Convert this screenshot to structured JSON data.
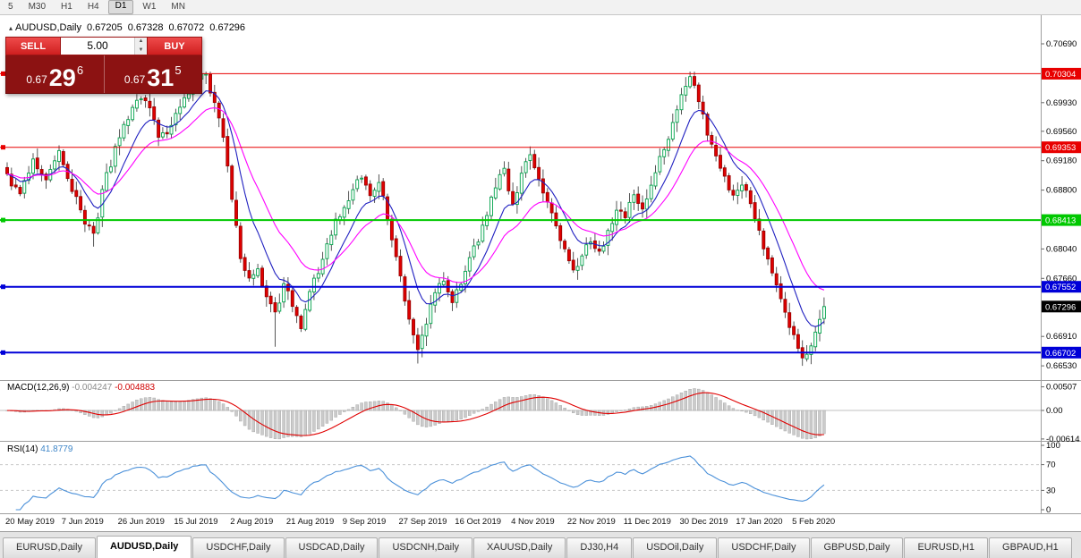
{
  "toolbar": {
    "timeframes": [
      {
        "label": "5",
        "active": false
      },
      {
        "label": "M30",
        "active": false
      },
      {
        "label": "H1",
        "active": false
      },
      {
        "label": "H4",
        "active": false
      },
      {
        "label": "D1",
        "active": true
      },
      {
        "label": "W1",
        "active": false
      },
      {
        "label": "MN",
        "active": false
      }
    ]
  },
  "header": {
    "symbol": "AUDUSD,Daily",
    "open": "0.67205",
    "high": "0.67328",
    "low": "0.67072",
    "close": "0.67296"
  },
  "icons": {
    "collapse": "▴",
    "spin_up": "▲",
    "spin_down": "▼"
  },
  "trade_widget": {
    "sell_label": "SELL",
    "buy_label": "BUY",
    "lot_size": "5.00",
    "sell_price_small": "0.67",
    "sell_price_big": "29",
    "sell_price_sup": "6",
    "buy_price_small": "0.67",
    "buy_price_big": "31",
    "buy_price_sup": "5"
  },
  "indicators": {
    "macd_label": "MACD(12,26,9)",
    "macd_main": "-0.004247",
    "macd_signal": "-0.004883",
    "rsi_label": "RSI(14)",
    "rsi_value": "41.8779"
  },
  "axis": {
    "price_ticks": [
      {
        "label": "0.70690",
        "price": 0.7069
      },
      {
        "label": "0.69930",
        "price": 0.6993
      },
      {
        "label": "0.69560",
        "price": 0.6956
      },
      {
        "label": "0.69180",
        "price": 0.6918
      },
      {
        "label": "0.68800",
        "price": 0.688
      },
      {
        "label": "0.68040",
        "price": 0.6804
      },
      {
        "label": "0.67660",
        "price": 0.6766
      },
      {
        "label": "0.66910",
        "price": 0.6691
      },
      {
        "label": "0.66530",
        "price": 0.6653
      }
    ],
    "current": {
      "label": "0.67296",
      "color": "#000000"
    }
  },
  "tabs": [
    {
      "label": "EURUSD,Daily",
      "active": false
    },
    {
      "label": "AUDUSD,Daily",
      "active": true
    },
    {
      "label": "USDCHF,Daily",
      "active": false
    },
    {
      "label": "USDCAD,Daily",
      "active": false
    },
    {
      "label": "USDCNH,Daily",
      "active": false
    },
    {
      "label": "XAUUSD,Daily",
      "active": false
    },
    {
      "label": "DJ30,H4",
      "active": false
    },
    {
      "label": "USDOil,Daily",
      "active": false
    },
    {
      "label": "USDCHF,Daily",
      "active": false
    },
    {
      "label": "GBPUSD,Daily",
      "active": false
    },
    {
      "label": "EURUSD,H1",
      "active": false
    },
    {
      "label": "GBPAUD,H1",
      "active": false
    }
  ],
  "chart_data": {
    "type": "candlestick",
    "title": "AUDUSD,Daily",
    "ohlc_display": {
      "open": 0.67205,
      "high": 0.67328,
      "low": 0.67072,
      "close": 0.67296
    },
    "current_price": 0.67296,
    "ylim": [
      0.6637,
      0.7099
    ],
    "candle_count": 190,
    "candle_spacing_px": 4.83,
    "label_every": 13,
    "x_labels": [
      "20 May 2019",
      "7 Jun 2019",
      "26 Jun 2019",
      "15 Jul 2019",
      "2 Aug 2019",
      "21 Aug 2019",
      "9 Sep 2019",
      "27 Sep 2019",
      "16 Oct 2019",
      "4 Nov 2019",
      "22 Nov 2019",
      "11 Dec 2019",
      "30 Dec 2019",
      "17 Jan 2020",
      "5 Feb 2020"
    ],
    "price_waypoints": [
      [
        0,
        0.69
      ],
      [
        3,
        0.6875
      ],
      [
        6,
        0.6921
      ],
      [
        9,
        0.6892
      ],
      [
        12,
        0.6931
      ],
      [
        15,
        0.688
      ],
      [
        18,
        0.6838
      ],
      [
        20,
        0.6824
      ],
      [
        23,
        0.6901
      ],
      [
        26,
        0.6946
      ],
      [
        29,
        0.6986
      ],
      [
        32,
        0.6997
      ],
      [
        35,
        0.695
      ],
      [
        38,
        0.6963
      ],
      [
        41,
        0.7001
      ],
      [
        44,
        0.7024
      ],
      [
        46,
        0.7029
      ],
      [
        48,
        0.6992
      ],
      [
        50,
        0.695
      ],
      [
        52,
        0.6868
      ],
      [
        54,
        0.679
      ],
      [
        56,
        0.6768
      ],
      [
        58,
        0.6779
      ],
      [
        60,
        0.6742
      ],
      [
        62,
        0.6723
      ],
      [
        64,
        0.6758
      ],
      [
        66,
        0.6731
      ],
      [
        68,
        0.6703
      ],
      [
        70,
        0.6748
      ],
      [
        72,
        0.6773
      ],
      [
        74,
        0.6812
      ],
      [
        76,
        0.6843
      ],
      [
        78,
        0.6857
      ],
      [
        80,
        0.6881
      ],
      [
        82,
        0.6897
      ],
      [
        84,
        0.6872
      ],
      [
        86,
        0.6891
      ],
      [
        88,
        0.6843
      ],
      [
        90,
        0.6793
      ],
      [
        93,
        0.6713
      ],
      [
        95,
        0.6673
      ],
      [
        97,
        0.6707
      ],
      [
        99,
        0.6747
      ],
      [
        101,
        0.6763
      ],
      [
        103,
        0.6733
      ],
      [
        105,
        0.6759
      ],
      [
        107,
        0.6793
      ],
      [
        109,
        0.6813
      ],
      [
        111,
        0.6847
      ],
      [
        113,
        0.6883
      ],
      [
        115,
        0.6907
      ],
      [
        117,
        0.6863
      ],
      [
        119,
        0.6901
      ],
      [
        121,
        0.6927
      ],
      [
        123,
        0.6893
      ],
      [
        125,
        0.6863
      ],
      [
        127,
        0.6833
      ],
      [
        129,
        0.6803
      ],
      [
        131,
        0.6777
      ],
      [
        133,
        0.6793
      ],
      [
        135,
        0.6813
      ],
      [
        137,
        0.6801
      ],
      [
        139,
        0.6827
      ],
      [
        141,
        0.6853
      ],
      [
        143,
        0.6843
      ],
      [
        145,
        0.6873
      ],
      [
        147,
        0.6857
      ],
      [
        149,
        0.6887
      ],
      [
        151,
        0.6923
      ],
      [
        153,
        0.6947
      ],
      [
        155,
        0.6983
      ],
      [
        157,
        0.7013
      ],
      [
        158,
        0.7026
      ],
      [
        160,
        0.6996
      ],
      [
        162,
        0.6953
      ],
      [
        164,
        0.6923
      ],
      [
        166,
        0.6897
      ],
      [
        168,
        0.6873
      ],
      [
        170,
        0.6887
      ],
      [
        172,
        0.6863
      ],
      [
        174,
        0.6827
      ],
      [
        176,
        0.6793
      ],
      [
        178,
        0.6757
      ],
      [
        180,
        0.6723
      ],
      [
        182,
        0.6693
      ],
      [
        184,
        0.6663
      ],
      [
        186,
        0.6677
      ],
      [
        188,
        0.6713
      ],
      [
        189,
        0.67296
      ]
    ],
    "wick_spikes": [
      {
        "index": 20,
        "low_extend": 0.0008
      },
      {
        "index": 62,
        "low_extend": 0.0038
      },
      {
        "index": 95,
        "low_extend": 0.0008
      },
      {
        "index": 158,
        "high_extend": 0.0006
      },
      {
        "index": 184,
        "low_extend": 0.0006
      }
    ],
    "overlays": [
      {
        "name": "ma-fast",
        "period": 9,
        "color": "#2020c0"
      },
      {
        "name": "ma-slow",
        "period": 20,
        "color": "#ff00ff"
      }
    ],
    "levels": [
      {
        "label": "0.70304",
        "price": 0.70304,
        "color": "#e80000",
        "width": 1
      },
      {
        "label": "0.69353",
        "price": 0.69353,
        "color": "#e80000",
        "width": 1
      },
      {
        "label": "0.68413",
        "price": 0.68413,
        "color": "#00c800",
        "width": 2
      },
      {
        "label": "0.67552",
        "price": 0.67552,
        "color": "#0000d8",
        "width": 2
      },
      {
        "label": "0.66702",
        "price": 0.66702,
        "color": "#0000d8",
        "width": 2
      }
    ],
    "up_color": {
      "fill": "#ffffff",
      "stroke": "#00a24a"
    },
    "down_color": {
      "fill": "#e10000",
      "stroke": "#9c0000"
    },
    "wick_color": "#444444",
    "macd": {
      "fast": 12,
      "slow": 26,
      "signal_period": 9,
      "main_value": -0.004247,
      "signal_value": -0.004883,
      "histogram_color": "#cbcbcb",
      "histogram_stroke": "#9f9f9f",
      "signal_color": "#e00000",
      "ticks": [
        {
          "label": "0.00507",
          "value": 0.00507
        },
        {
          "label": "0.00",
          "value": 0
        },
        {
          "label": "-0.00614",
          "value": -0.00614
        }
      ]
    },
    "rsi": {
      "period": 14,
      "value": 41.8779,
      "color": "#4a90d9",
      "levels": [
        70,
        30
      ],
      "ticks": [
        100,
        70,
        30,
        0
      ]
    }
  }
}
